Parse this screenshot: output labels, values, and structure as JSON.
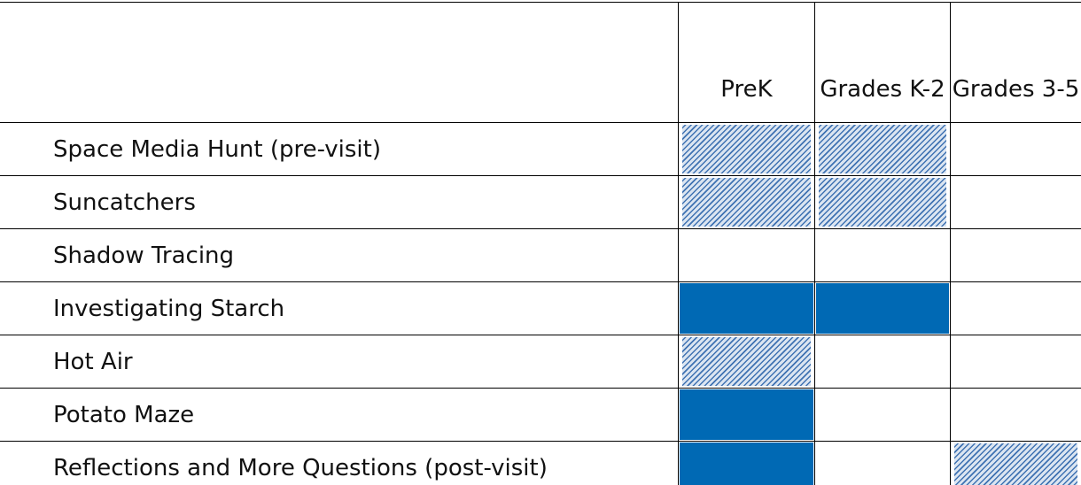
{
  "table": {
    "header": [
      "PreK",
      "Grades K-2",
      "Grades 3-5"
    ],
    "rows": [
      {
        "name": "Space Media Hunt (pre-visit)",
        "fills": [
          "hatched",
          "hatched",
          null
        ]
      },
      {
        "name": "Suncatchers",
        "fills": [
          "hatched",
          "hatched",
          null
        ]
      },
      {
        "name": "Shadow Tracing",
        "fills": [
          null,
          null,
          null
        ]
      },
      {
        "name": "Investigating Starch",
        "fills": [
          "solid",
          "solid",
          null
        ]
      },
      {
        "name": "Hot Air",
        "fills": [
          "hatched",
          null,
          null
        ]
      },
      {
        "name": "Potato Maze",
        "fills": [
          "solid",
          null,
          null
        ]
      },
      {
        "name": "Reflections and More Questions (post-visit)",
        "fills": [
          "solid",
          null,
          "hatched"
        ]
      }
    ],
    "solid_color": "#0069b4",
    "hatch_color": "#3f72b2",
    "hatch_background": "#dbe5f1"
  }
}
